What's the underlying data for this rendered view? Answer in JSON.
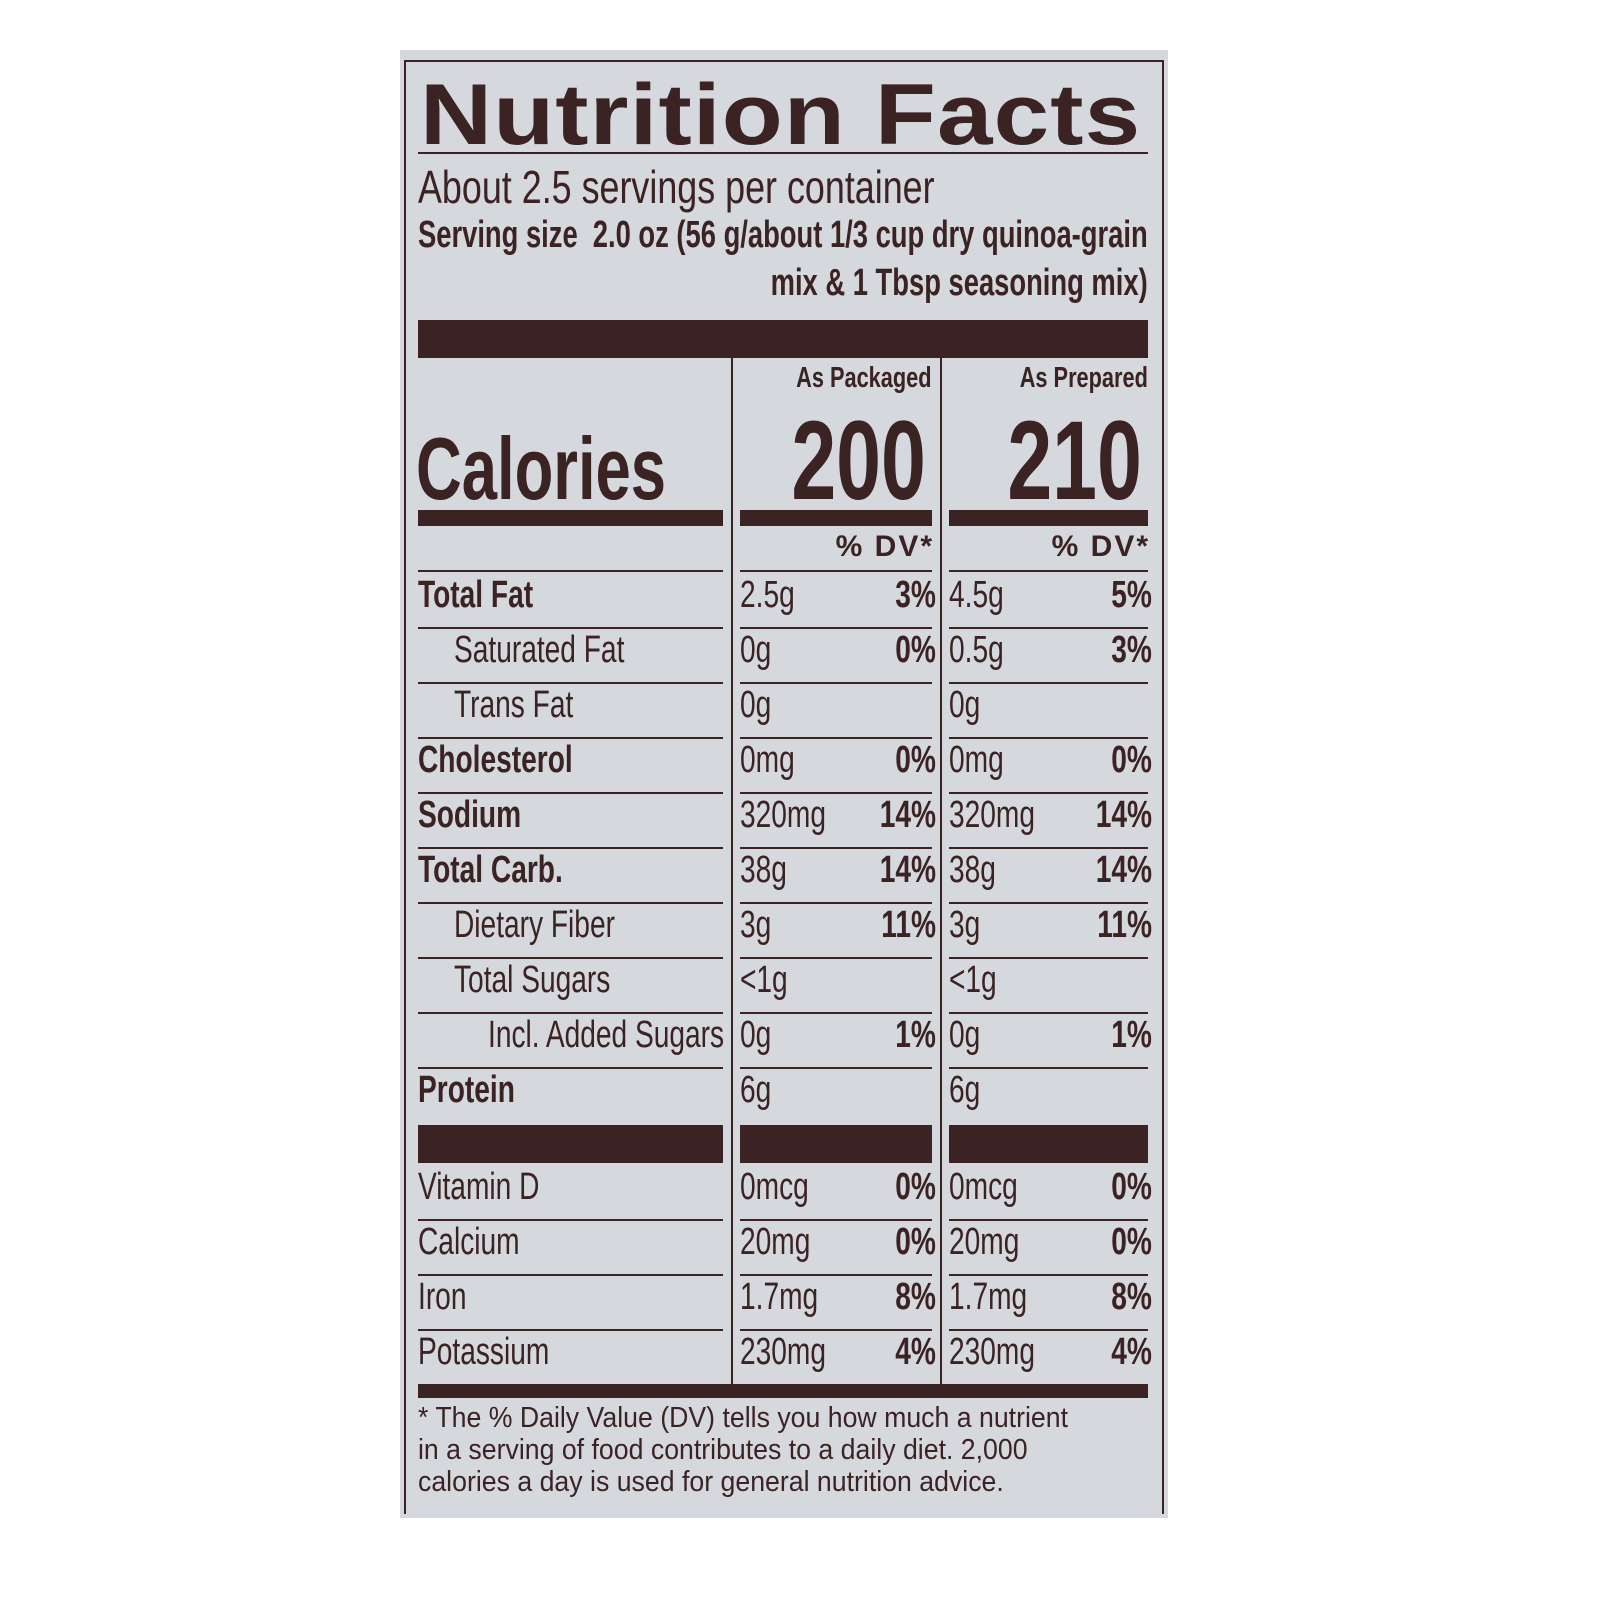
{
  "colors": {
    "background": "#d5d9dd",
    "ink": "#3b2324"
  },
  "title": "Nutrition Facts",
  "servings_per_container": "About 2.5 servings per container",
  "serving_size": {
    "label": "Serving size",
    "line1": "2.0 oz (56 g/about 1/3 cup dry quinoa-grain",
    "line2": "mix & 1 Tbsp seasoning mix)"
  },
  "columns": [
    "As Packaged",
    "As Prepared"
  ],
  "calories": {
    "label": "Calories",
    "values": [
      "200",
      "210"
    ]
  },
  "dv_header": "% DV*",
  "nutrients": [
    {
      "name": "Total Fat",
      "bold": true,
      "indent": 0,
      "values": [
        {
          "amount": "2.5g",
          "dv": "3%"
        },
        {
          "amount": "4.5g",
          "dv": "5%"
        }
      ]
    },
    {
      "name": "Saturated Fat",
      "bold": false,
      "indent": 1,
      "values": [
        {
          "amount": "0g",
          "dv": "0%"
        },
        {
          "amount": "0.5g",
          "dv": "3%"
        }
      ]
    },
    {
      "name": "Trans Fat",
      "bold": false,
      "indent": 1,
      "values": [
        {
          "amount": "0g",
          "dv": ""
        },
        {
          "amount": "0g",
          "dv": ""
        }
      ]
    },
    {
      "name": "Cholesterol",
      "bold": true,
      "indent": 0,
      "values": [
        {
          "amount": "0mg",
          "dv": "0%"
        },
        {
          "amount": "0mg",
          "dv": "0%"
        }
      ]
    },
    {
      "name": "Sodium",
      "bold": true,
      "indent": 0,
      "values": [
        {
          "amount": "320mg",
          "dv": "14%"
        },
        {
          "amount": "320mg",
          "dv": "14%"
        }
      ]
    },
    {
      "name": "Total Carb.",
      "bold": true,
      "indent": 0,
      "values": [
        {
          "amount": "38g",
          "dv": "14%"
        },
        {
          "amount": "38g",
          "dv": "14%"
        }
      ]
    },
    {
      "name": "Dietary Fiber",
      "bold": false,
      "indent": 1,
      "values": [
        {
          "amount": "3g",
          "dv": "11%"
        },
        {
          "amount": "3g",
          "dv": "11%"
        }
      ]
    },
    {
      "name": "Total Sugars",
      "bold": false,
      "indent": 1,
      "values": [
        {
          "amount": "<1g",
          "dv": ""
        },
        {
          "amount": "<1g",
          "dv": ""
        }
      ]
    },
    {
      "name": "Incl. Added Sugars",
      "bold": false,
      "indent": 2,
      "values": [
        {
          "amount": "0g",
          "dv": "1%"
        },
        {
          "amount": "0g",
          "dv": "1%"
        }
      ]
    },
    {
      "name": "Protein",
      "bold": true,
      "indent": 0,
      "values": [
        {
          "amount": "6g",
          "dv": ""
        },
        {
          "amount": "6g",
          "dv": ""
        }
      ]
    }
  ],
  "vitamins": [
    {
      "name": "Vitamin D",
      "values": [
        {
          "amount": "0mcg",
          "dv": "0%"
        },
        {
          "amount": "0mcg",
          "dv": "0%"
        }
      ]
    },
    {
      "name": "Calcium",
      "values": [
        {
          "amount": "20mg",
          "dv": "0%"
        },
        {
          "amount": "20mg",
          "dv": "0%"
        }
      ]
    },
    {
      "name": "Iron",
      "values": [
        {
          "amount": "1.7mg",
          "dv": "8%"
        },
        {
          "amount": "1.7mg",
          "dv": "8%"
        }
      ]
    },
    {
      "name": "Potassium",
      "values": [
        {
          "amount": "230mg",
          "dv": "4%"
        },
        {
          "amount": "230mg",
          "dv": "4%"
        }
      ]
    }
  ],
  "footnote": "* The % Daily Value (DV) tells you how much a nutrient in a serving of food contributes to a daily diet. 2,000 calories a day is used for general nutrition advice."
}
